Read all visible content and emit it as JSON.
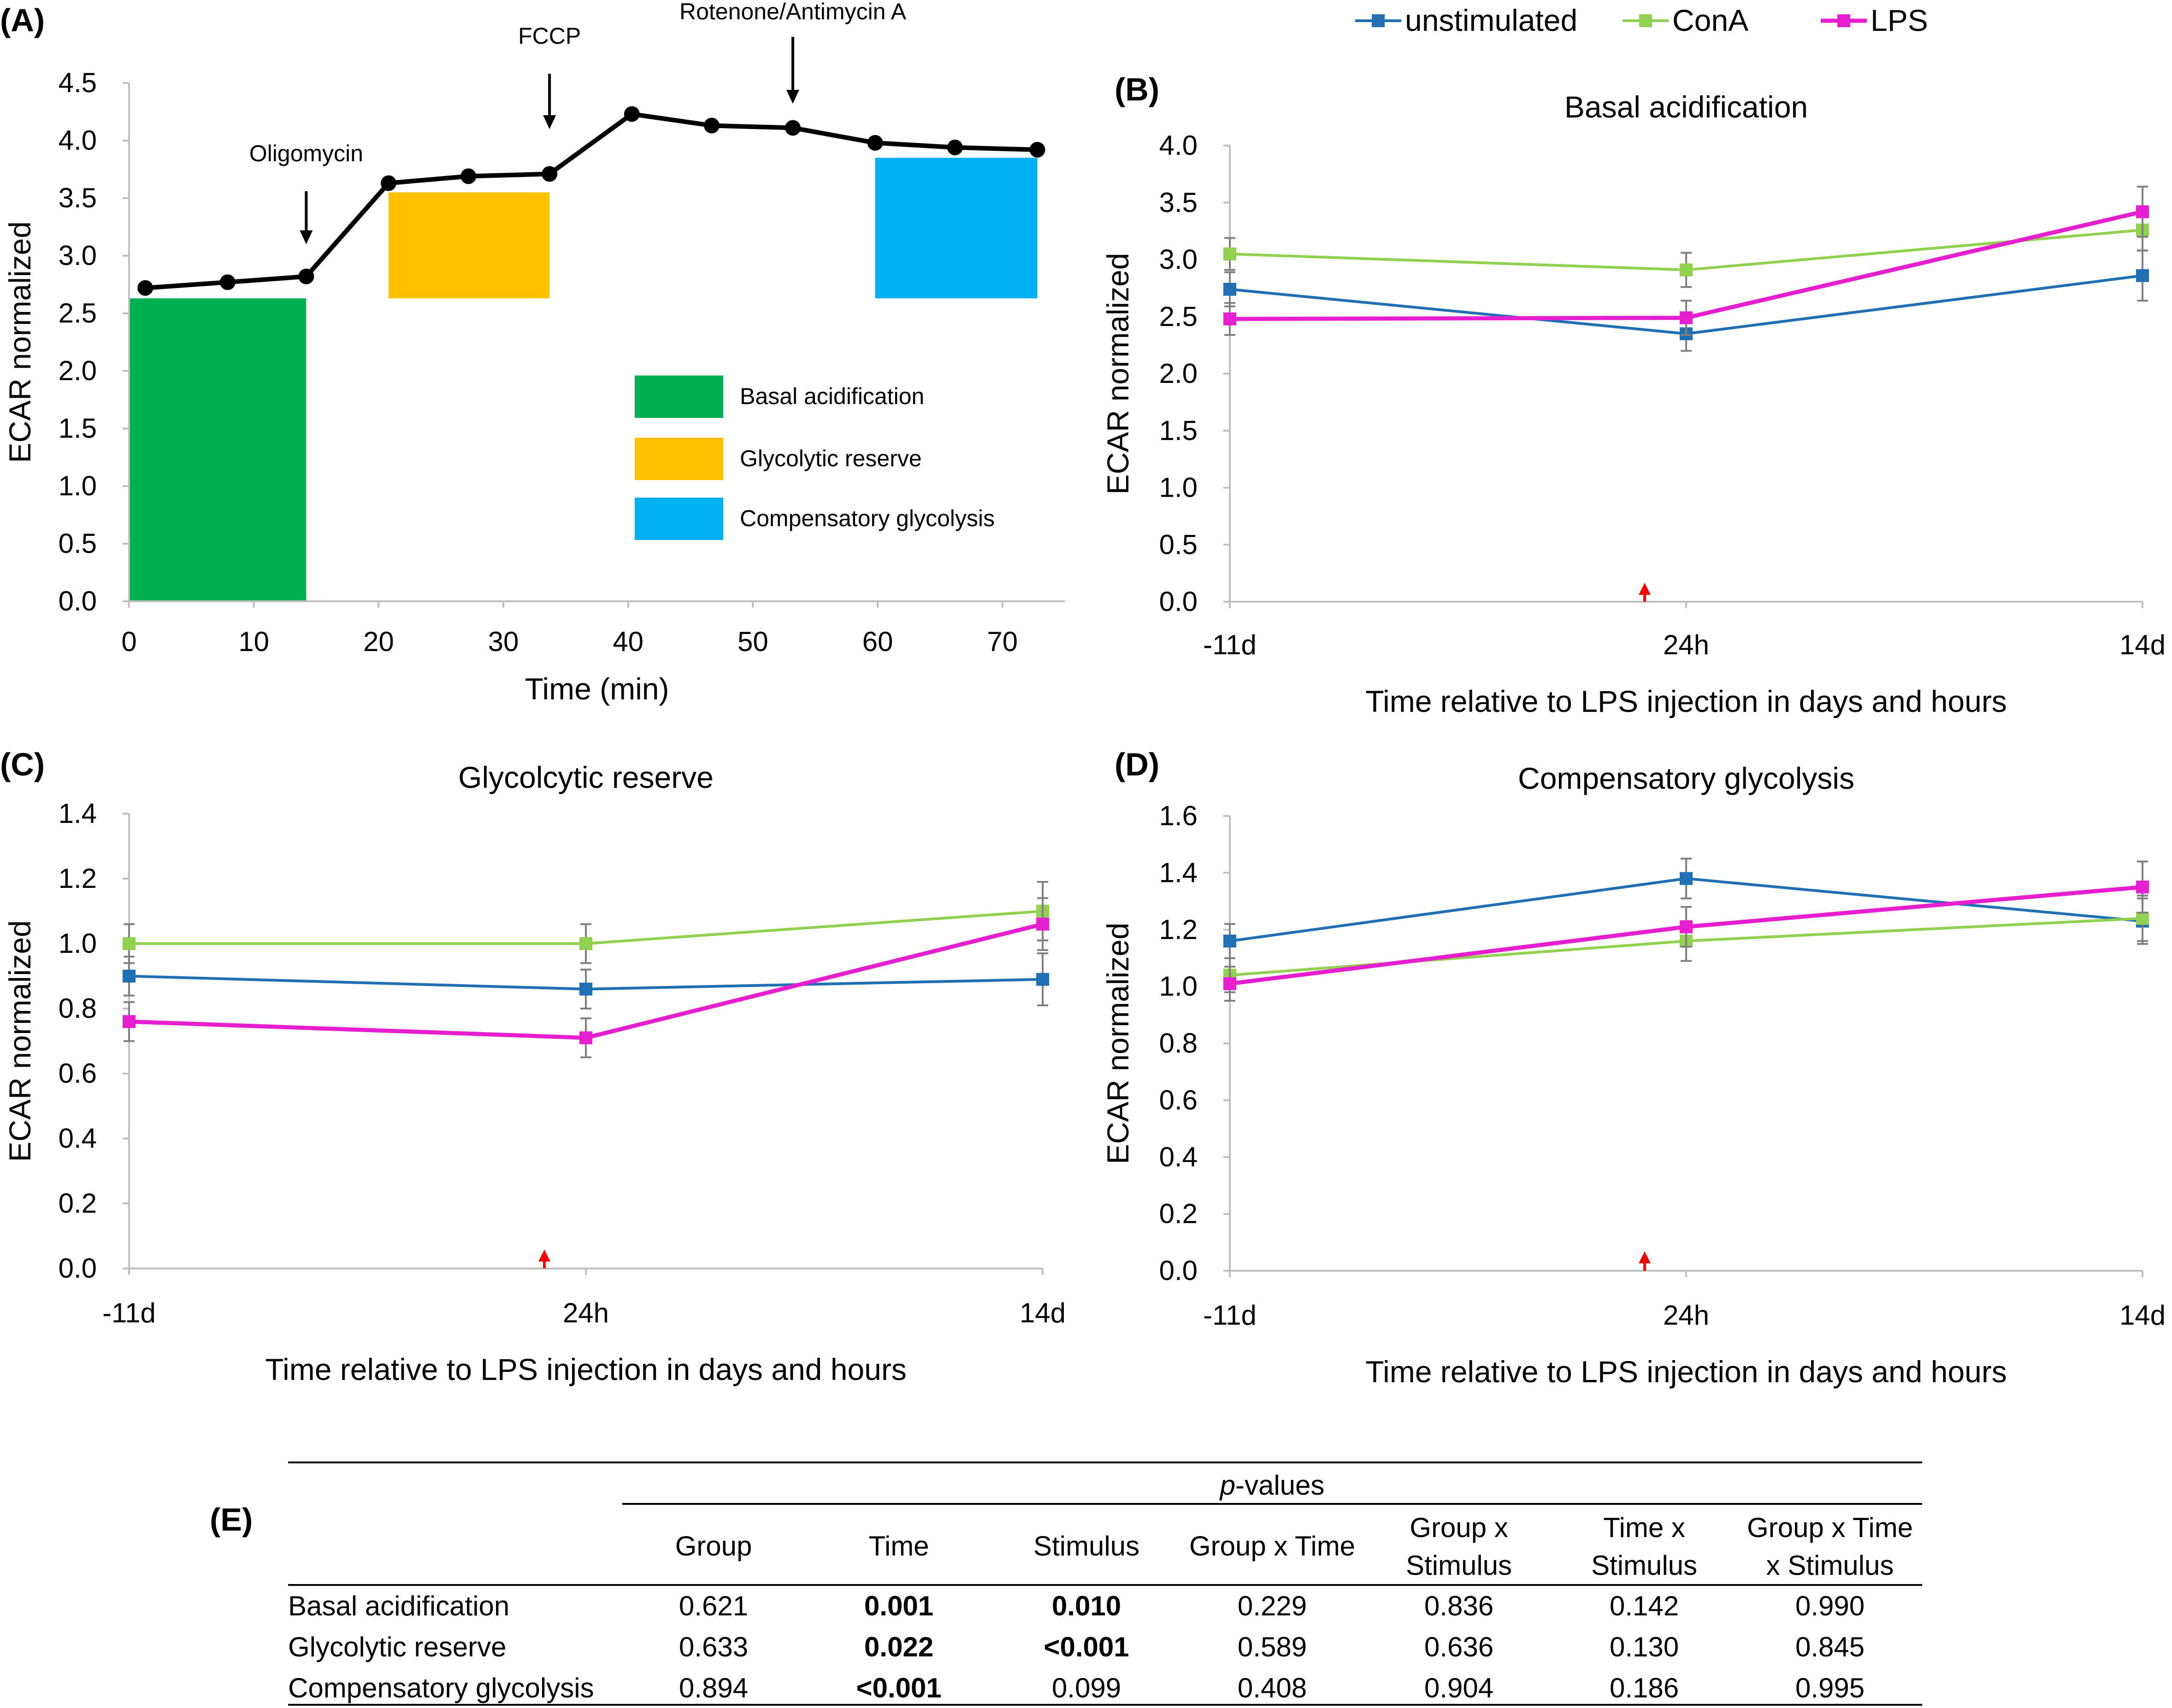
{
  "colors": {
    "unstimulated": "#1f6fb5",
    "ConA": "#92d050",
    "LPS": "#e61ecf",
    "basal": "#00b050",
    "glycolytic": "#ffc000",
    "compensatory": "#00b0f0",
    "arrow_red": "#ff0000"
  },
  "legend": {
    "series": [
      "unstimulated",
      "ConA",
      "LPS"
    ]
  },
  "chart_data": [
    {
      "id": "A",
      "panel_label": "(A)",
      "type": "line",
      "title": "",
      "xlabel": "Time (min)",
      "ylabel": "ECAR normalized",
      "xlim": [
        0,
        75
      ],
      "ylim": [
        0,
        4.5
      ],
      "xticks": [
        "0",
        "10",
        "20",
        "30",
        "40",
        "50",
        "60",
        "70"
      ],
      "yticks": [
        "0.0",
        "0.5",
        "1.0",
        "1.5",
        "2.0",
        "2.5",
        "3.0",
        "3.5",
        "4.0",
        "4.5"
      ],
      "series": [
        {
          "name": "ECAR",
          "x": [
            1.3,
            7.9,
            14.2,
            20.8,
            27.2,
            33.7,
            40.3,
            46.7,
            53.2,
            59.8,
            66.2,
            72.8
          ],
          "values": [
            2.72,
            2.77,
            2.82,
            3.63,
            3.69,
            3.71,
            4.23,
            4.13,
            4.11,
            3.98,
            3.94,
            3.92
          ]
        }
      ],
      "regions": [
        {
          "name": "Basal acidification",
          "color_key": "basal",
          "x": [
            0,
            14.2
          ],
          "y": [
            0,
            2.63
          ]
        },
        {
          "name": "Glycolytic reserve",
          "color_key": "glycolytic",
          "x": [
            20.8,
            33.7
          ],
          "y": [
            2.63,
            3.55
          ]
        },
        {
          "name": "Compensatory glycolysis",
          "color_key": "compensatory",
          "x": [
            59.8,
            72.8
          ],
          "y": [
            2.63,
            3.85
          ]
        }
      ],
      "annotations": [
        {
          "text": "Oligomycin",
          "x": 14.2
        },
        {
          "text": "FCCP",
          "x": 33.7
        },
        {
          "text": "Rotenone/Antimycin A",
          "x": 53.2
        }
      ],
      "legend_entries": [
        "Basal acidification",
        "Glycolytic reserve",
        "Compensatory glycolysis"
      ]
    },
    {
      "id": "B",
      "panel_label": "(B)",
      "type": "line",
      "title": "Basal acidification",
      "xlabel": "Time relative to LPS injection in days and hours",
      "ylabel": "ECAR normalized",
      "categories": [
        "-11d",
        "24h",
        "14d"
      ],
      "ylim": [
        0,
        4.0
      ],
      "yticks": [
        "0.0",
        "0.5",
        "1.0",
        "1.5",
        "2.0",
        "2.5",
        "3.0",
        "3.5",
        "4.0"
      ],
      "series": [
        {
          "name": "unstimulated",
          "values": [
            2.74,
            2.35,
            2.86
          ],
          "errors": [
            0.15,
            0.15,
            0.22
          ]
        },
        {
          "name": "ConA",
          "values": [
            3.05,
            2.91,
            3.26
          ],
          "errors": [
            0.14,
            0.15,
            0.18
          ]
        },
        {
          "name": "LPS",
          "values": [
            2.48,
            2.49,
            3.42
          ],
          "errors": [
            0.14,
            0.15,
            0.22
          ]
        }
      ]
    },
    {
      "id": "C",
      "panel_label": "(C)",
      "type": "line",
      "title": "Glycolcytic reserve",
      "xlabel": "Time relative to LPS injection in days and hours",
      "ylabel": "ECAR normalized",
      "categories": [
        "-11d",
        "24h",
        "14d"
      ],
      "ylim": [
        0,
        1.4
      ],
      "yticks": [
        "0.0",
        "0.2",
        "0.4",
        "0.6",
        "0.8",
        "1.0",
        "1.2",
        "1.4"
      ],
      "series": [
        {
          "name": "unstimulated",
          "values": [
            0.9,
            0.86,
            0.89
          ],
          "errors": [
            0.06,
            0.06,
            0.08
          ]
        },
        {
          "name": "ConA",
          "values": [
            1.0,
            1.0,
            1.1
          ],
          "errors": [
            0.06,
            0.06,
            0.09
          ]
        },
        {
          "name": "LPS",
          "values": [
            0.76,
            0.71,
            1.06
          ],
          "errors": [
            0.06,
            0.06,
            0.08
          ]
        }
      ]
    },
    {
      "id": "D",
      "panel_label": "(D)",
      "type": "line",
      "title": "Compensatory glycolysis",
      "xlabel": "Time relative to LPS injection in days and hours",
      "ylabel": "ECAR normalized",
      "categories": [
        "-11d",
        "24h",
        "14d"
      ],
      "ylim": [
        0,
        1.6
      ],
      "yticks": [
        "0.0",
        "0.2",
        "0.4",
        "0.6",
        "0.8",
        "1.0",
        "1.2",
        "1.4",
        "1.6"
      ],
      "series": [
        {
          "name": "unstimulated",
          "values": [
            1.16,
            1.38,
            1.23
          ],
          "errors": [
            0.06,
            0.07,
            0.08
          ]
        },
        {
          "name": "ConA",
          "values": [
            1.04,
            1.16,
            1.24
          ],
          "errors": [
            0.06,
            0.07,
            0.08
          ]
        },
        {
          "name": "LPS",
          "values": [
            1.01,
            1.21,
            1.35
          ],
          "errors": [
            0.06,
            0.07,
            0.09
          ]
        }
      ]
    },
    {
      "id": "E",
      "panel_label": "(E)",
      "type": "table",
      "super_header_prefix": "p",
      "super_header_suffix": "-values",
      "columns": [
        [
          "Group"
        ],
        [
          "Time"
        ],
        [
          "Stimulus"
        ],
        [
          "Group x Time"
        ],
        [
          "Group x",
          "Stimulus"
        ],
        [
          "Time x",
          "Stimulus"
        ],
        [
          "Group x Time",
          "x Stimulus"
        ]
      ],
      "rows": [
        {
          "label": "Basal acidification",
          "cells": [
            "0.621",
            "0.001",
            "0.010",
            "0.229",
            "0.836",
            "0.142",
            "0.990"
          ],
          "bold": [
            false,
            true,
            true,
            false,
            false,
            false,
            false
          ]
        },
        {
          "label": "Glycolytic reserve",
          "cells": [
            "0.633",
            "0.022",
            "<0.001",
            "0.589",
            "0.636",
            "0.130",
            "0.845"
          ],
          "bold": [
            false,
            true,
            true,
            false,
            false,
            false,
            false
          ]
        },
        {
          "label": "Compensatory glycolysis",
          "cells": [
            "0.894",
            "<0.001",
            "0.099",
            "0.408",
            "0.904",
            "0.186",
            "0.995"
          ],
          "bold": [
            false,
            true,
            false,
            false,
            false,
            false,
            false
          ]
        }
      ]
    }
  ]
}
